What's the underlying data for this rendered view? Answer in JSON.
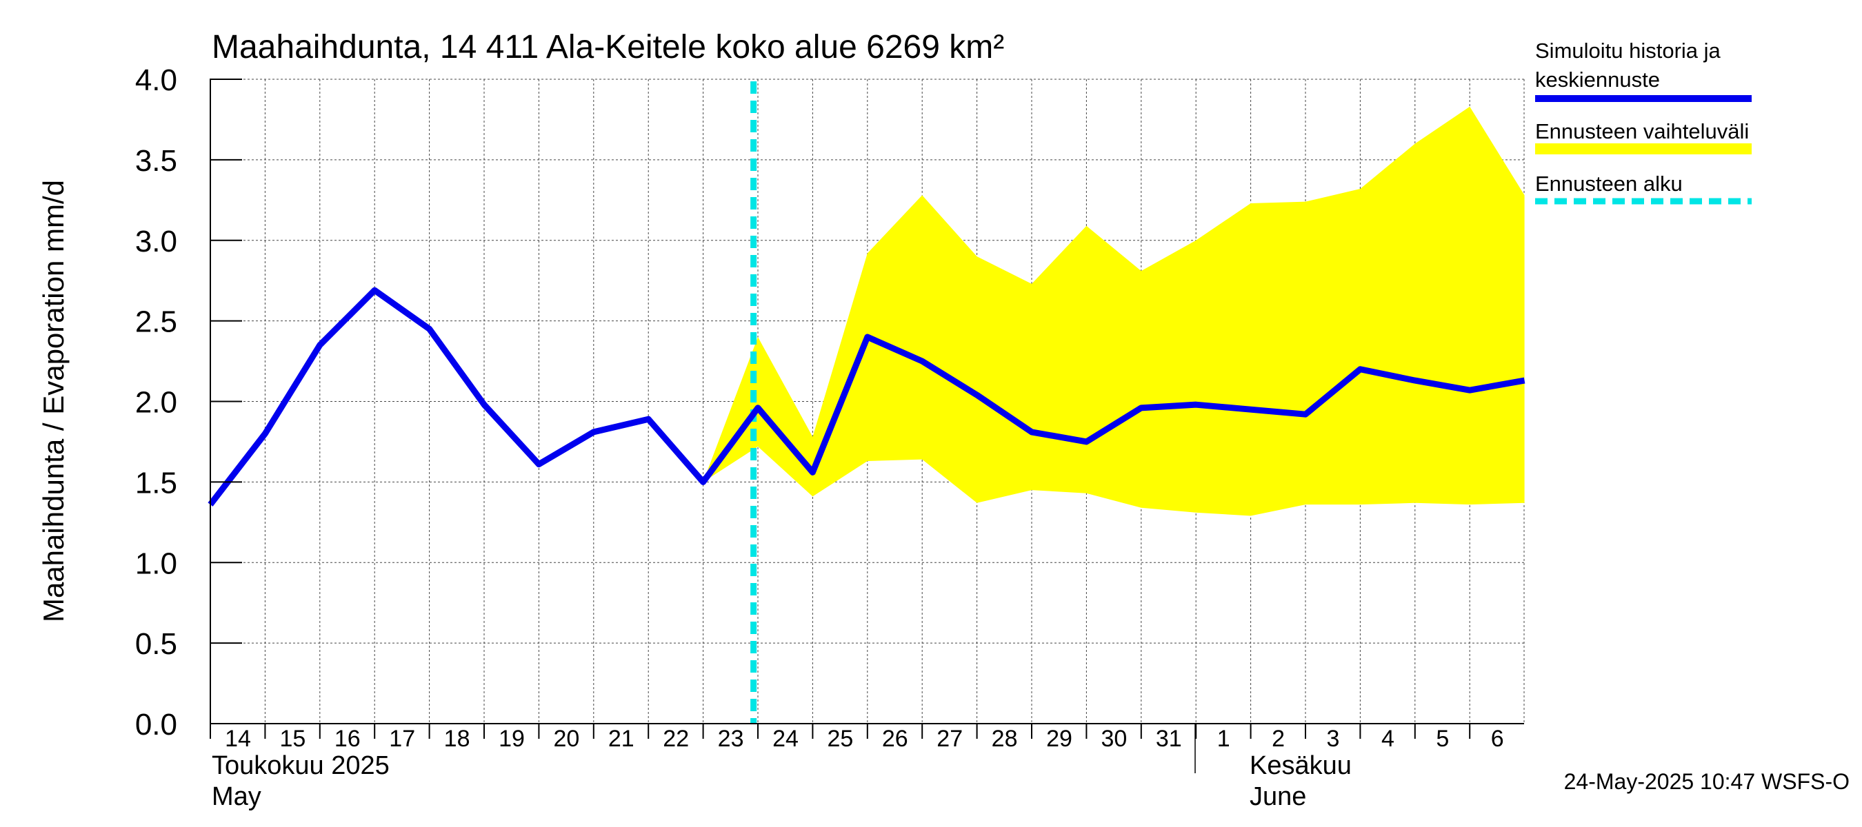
{
  "chart_data": {
    "type": "area+line",
    "title": "Maahaihdunta, 14 411 Ala-Keitele koko alue 6269 km²",
    "ylabel": "Maahaihdunta / Evaporation   mm/d",
    "ylim": [
      0.0,
      4.0
    ],
    "yticks": [
      "0.0",
      "0.5",
      "1.0",
      "1.5",
      "2.0",
      "2.5",
      "3.0",
      "3.5",
      "4.0"
    ],
    "x_day_labels": [
      "14",
      "15",
      "16",
      "17",
      "18",
      "19",
      "20",
      "21",
      "22",
      "23",
      "24",
      "25",
      "26",
      "27",
      "28",
      "29",
      "30",
      "31",
      "1",
      "2",
      "3",
      "4",
      "5",
      "6"
    ],
    "month_labels": {
      "may_fi": "Toukokuu  2025",
      "may_en": "May",
      "june_fi": "Kesäkuu",
      "june_en": "June"
    },
    "forecast_start_day_index": 9.92,
    "series": [
      {
        "name": "Simuloitu historia ja keskiennuste",
        "color": "#0000ee",
        "day_index": [
          0,
          1,
          2,
          3,
          4,
          5,
          6,
          7,
          8,
          9,
          10,
          11,
          12,
          13,
          14,
          15,
          16,
          17,
          18,
          19,
          20,
          21,
          22,
          23,
          24
        ],
        "values": [
          1.36,
          1.8,
          2.35,
          2.69,
          2.45,
          1.98,
          1.61,
          1.81,
          1.89,
          1.5,
          1.96,
          1.56,
          2.4,
          2.25,
          2.04,
          1.81,
          1.75,
          1.96,
          1.98,
          1.95,
          1.92,
          2.2,
          2.13,
          2.07,
          2.13
        ]
      }
    ],
    "band": {
      "name": "Ennusteen vaihteluväli",
      "color": "#ffff00",
      "day_index": [
        9,
        10,
        11,
        12,
        13,
        14,
        15,
        16,
        17,
        18,
        19,
        20,
        21,
        22,
        23,
        24
      ],
      "upper": [
        1.5,
        2.4,
        1.78,
        2.92,
        3.28,
        2.9,
        2.73,
        3.09,
        2.81,
        3.0,
        3.23,
        3.24,
        3.32,
        3.6,
        3.83,
        3.28
      ],
      "lower": [
        1.5,
        1.72,
        1.41,
        1.63,
        1.64,
        1.37,
        1.45,
        1.43,
        1.34,
        1.31,
        1.29,
        1.36,
        1.36,
        1.37,
        1.36,
        1.37
      ]
    },
    "legend": {
      "position": "right",
      "entries": [
        {
          "label_line1": "Simuloitu historia ja",
          "label_line2": "keskiennuste",
          "color": "#0000ee",
          "style": "solid"
        },
        {
          "label_line1": "Ennusteen vaihteluväli",
          "color": "#ffff00",
          "style": "band"
        },
        {
          "label_line1": "Ennusteen alku",
          "color": "#00e5e5",
          "style": "dashed"
        }
      ]
    },
    "footer": "24-May-2025 10:47 WSFS-O",
    "grid": true
  }
}
